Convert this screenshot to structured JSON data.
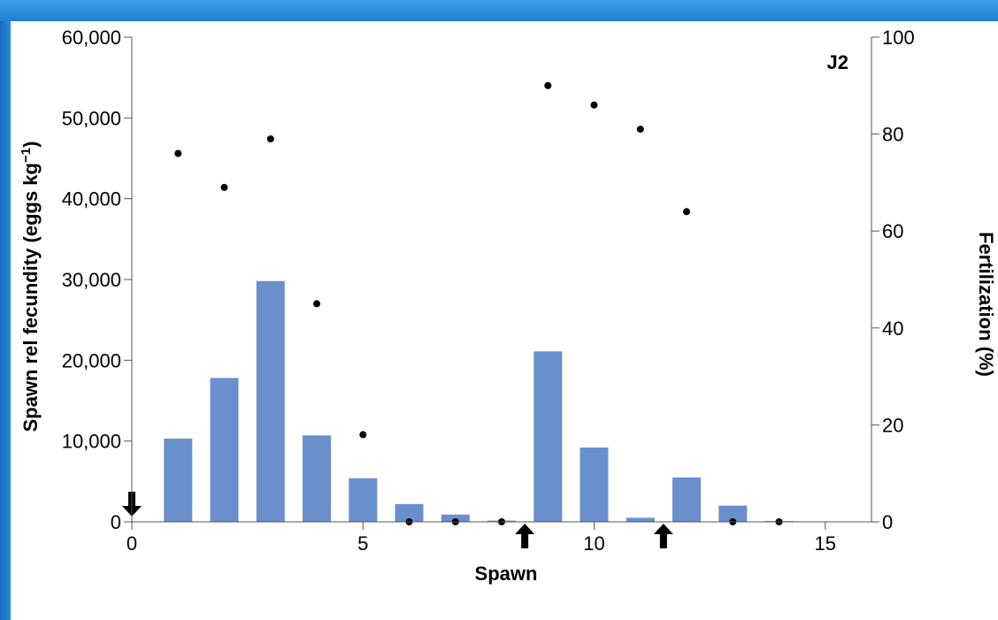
{
  "chart_data": {
    "type": "bar",
    "annotation": "J2",
    "xlabel": "Spawn",
    "ylabel_left": "Spawn rel fecundity (eggs kg",
    "ylabel_left_sup": "−1",
    "ylabel_left_end": ")",
    "ylabel_right": "Fertilization (%)",
    "xlim": [
      0,
      16
    ],
    "ylim_left": [
      0,
      60000
    ],
    "ylim_right": [
      0,
      100
    ],
    "x_ticks": [
      "0",
      "5",
      "10",
      "15"
    ],
    "y_left_ticks": [
      "0",
      "10,000",
      "20,000",
      "30,000",
      "40,000",
      "50,000",
      "60,000"
    ],
    "y_right_ticks": [
      "0",
      "20",
      "40",
      "60",
      "80",
      "100"
    ],
    "grid": false,
    "colors": {
      "bar": "#6a8fcd",
      "point": "#000000",
      "frame_top": "#3aa0ea",
      "frame_left": "#1e73c8"
    },
    "series": [
      {
        "kind": "bar",
        "axis": "left",
        "x": [
          1,
          2,
          3,
          4,
          5,
          6,
          7,
          8,
          9,
          10,
          11,
          12,
          13,
          14
        ],
        "values": [
          10300,
          17800,
          29800,
          10700,
          5400,
          2200,
          900,
          150,
          21100,
          9200,
          500,
          5500,
          2000,
          100
        ]
      },
      {
        "kind": "scatter",
        "axis": "right",
        "x": [
          1,
          2,
          3,
          4,
          5,
          6,
          7,
          8,
          9,
          10,
          11,
          12,
          13,
          14
        ],
        "values": [
          76,
          69,
          79,
          45,
          18,
          0,
          0,
          0,
          90,
          86,
          81,
          64,
          0,
          0
        ]
      }
    ],
    "arrows": [
      {
        "x": 0,
        "direction": "down"
      },
      {
        "x": 8.5,
        "direction": "up"
      },
      {
        "x": 11.5,
        "direction": "up"
      }
    ]
  }
}
